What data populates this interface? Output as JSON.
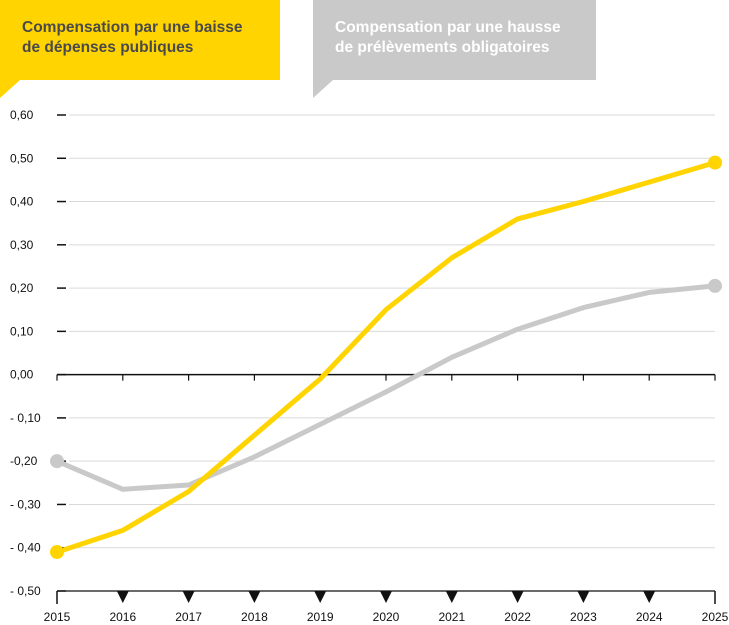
{
  "legend": {
    "series_a_label": "Compensation par une baisse\nde dépenses publiques",
    "series_b_label": "Compensation par une hausse\nde prélèvements obligatoires"
  },
  "colors": {
    "series_a": "#FFD400",
    "series_b": "#C9C9C9",
    "axis": "#111111",
    "grid": "#d9d9d9"
  },
  "chart_data": {
    "type": "line",
    "x": [
      2015,
      2016,
      2017,
      2018,
      2019,
      2020,
      2021,
      2022,
      2023,
      2024,
      2025
    ],
    "x_tick_labels": [
      "2015",
      "2016",
      "2017",
      "2018",
      "2019",
      "2020",
      "2021",
      "2022",
      "2023",
      "2024",
      "2025"
    ],
    "y_tick_values": [
      0.6,
      0.5,
      0.4,
      0.3,
      0.2,
      0.1,
      0.0,
      -0.1,
      -0.2,
      -0.3,
      -0.4,
      -0.5
    ],
    "y_tick_labels": [
      "0,60",
      "0,50",
      "0,40",
      "0,30",
      "0,20",
      "0,10",
      "0,00",
      "- 0,10",
      "-0,20",
      "- 0,30",
      "- 0,40",
      "- 0,50"
    ],
    "ylim": [
      -0.5,
      0.6
    ],
    "grid": true,
    "legend_position": "top",
    "series": [
      {
        "name": "Compensation par une baisse de dépenses publiques",
        "values": [
          -0.41,
          -0.36,
          -0.27,
          -0.14,
          -0.01,
          0.15,
          0.27,
          0.36,
          0.4,
          0.445,
          0.49
        ]
      },
      {
        "name": "Compensation par une hausse de prélèvements obligatoires",
        "values": [
          -0.2,
          -0.265,
          -0.255,
          -0.19,
          -0.115,
          -0.04,
          0.04,
          0.105,
          0.155,
          0.19,
          0.205
        ]
      }
    ]
  }
}
